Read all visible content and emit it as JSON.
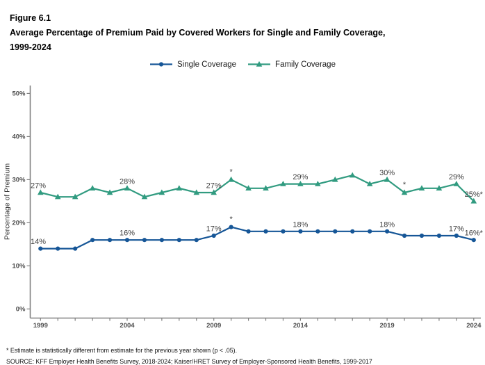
{
  "figure": {
    "label": "Figure 6.1",
    "title_line1": "Average Percentage of Premium Paid by Covered Workers for Single and Family Coverage,",
    "title_line2": "1999-2024"
  },
  "legend": {
    "items": [
      {
        "label": "Single Coverage",
        "color": "#165697",
        "marker": "circle"
      },
      {
        "label": "Family Coverage",
        "color": "#319B80",
        "marker": "triangle"
      }
    ]
  },
  "chart_data": {
    "type": "line",
    "title": "Average Percentage of Premium Paid by Covered Workers for Single and Family Coverage, 1999-2024",
    "x": [
      1999,
      2000,
      2001,
      2002,
      2003,
      2004,
      2005,
      2006,
      2007,
      2008,
      2009,
      2010,
      2011,
      2012,
      2013,
      2014,
      2015,
      2016,
      2017,
      2018,
      2019,
      2020,
      2021,
      2022,
      2023,
      2024
    ],
    "series": [
      {
        "name": "Single Coverage",
        "color": "#165697",
        "marker": "circle",
        "values": [
          14,
          14,
          14,
          16,
          16,
          16,
          16,
          16,
          16,
          16,
          17,
          19,
          18,
          18,
          18,
          18,
          18,
          18,
          18,
          18,
          18,
          17,
          17,
          17,
          17,
          16
        ]
      },
      {
        "name": "Family Coverage",
        "color": "#319B80",
        "marker": "triangle",
        "values": [
          27,
          26,
          26,
          28,
          27,
          28,
          26,
          27,
          28,
          27,
          27,
          30,
          28,
          28,
          29,
          29,
          29,
          30,
          31,
          29,
          30,
          27,
          28,
          28,
          29,
          25
        ]
      }
    ],
    "xlabel": "",
    "ylabel": "Percentage of Premium",
    "ylim": [
      0,
      50
    ],
    "yticks": [
      "0%",
      "10%",
      "20%",
      "30%",
      "40%",
      "50%"
    ],
    "xticks": [
      1999,
      2004,
      2009,
      2014,
      2019,
      2024
    ],
    "grid": false,
    "legend_position": "top",
    "annotations": [
      {
        "series": 0,
        "year": 1999,
        "text": "14%"
      },
      {
        "series": 0,
        "year": 2004,
        "text": "16%"
      },
      {
        "series": 0,
        "year": 2009,
        "text": "17%"
      },
      {
        "series": 0,
        "year": 2010,
        "text": "*"
      },
      {
        "series": 0,
        "year": 2014,
        "text": "18%"
      },
      {
        "series": 0,
        "year": 2019,
        "text": "18%"
      },
      {
        "series": 0,
        "year": 2023,
        "text": "17%"
      },
      {
        "series": 0,
        "year": 2024,
        "text": "16%*"
      },
      {
        "series": 1,
        "year": 1999,
        "text": "27%"
      },
      {
        "series": 1,
        "year": 2004,
        "text": "28%"
      },
      {
        "series": 1,
        "year": 2009,
        "text": "27%"
      },
      {
        "series": 1,
        "year": 2010,
        "text": "*"
      },
      {
        "series": 1,
        "year": 2014,
        "text": "29%"
      },
      {
        "series": 1,
        "year": 2019,
        "text": "30%"
      },
      {
        "series": 1,
        "year": 2020,
        "text": "*"
      },
      {
        "series": 1,
        "year": 2023,
        "text": "29%"
      },
      {
        "series": 1,
        "year": 2024,
        "text": "25%*"
      }
    ]
  },
  "colors": {
    "axis": "#808080",
    "tick_label": "#4D4D4D",
    "annotation": "#404040"
  },
  "footnotes": {
    "note": "* Estimate is statistically different from estimate for the previous year shown (p < .05).",
    "source": "SOURCE: KFF Employer Health Benefits Survey, 2018-2024; Kaiser/HRET Survey of Employer-Sponsored Health Benefits, 1999-2017"
  }
}
